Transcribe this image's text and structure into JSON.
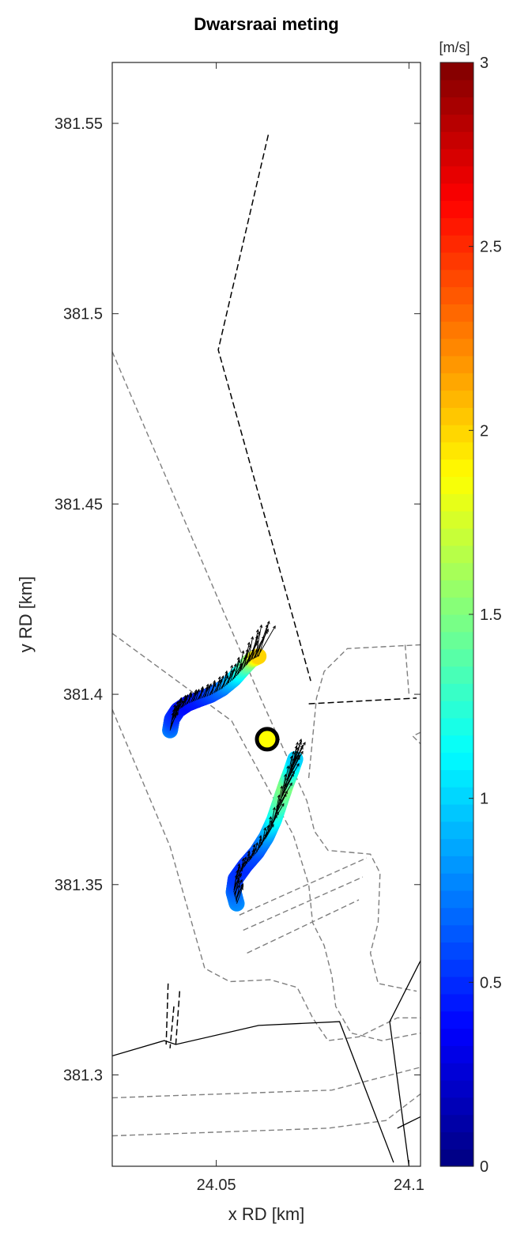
{
  "chart_data": {
    "type": "scatter",
    "title": "Dwarsraai meting",
    "xlabel": "x RD [km]",
    "ylabel": "y RD [km]",
    "xlim": [
      24.023,
      24.103
    ],
    "ylim": [
      381.276,
      381.566
    ],
    "xticks": [
      24.05,
      24.1
    ],
    "xtick_labels": [
      "24.05",
      "24.1"
    ],
    "yticks": [
      381.3,
      381.35,
      381.4,
      381.45,
      381.5,
      381.55
    ],
    "ytick_labels": [
      "381.3",
      "381.35",
      "381.4",
      "381.45",
      "381.5",
      "381.55"
    ],
    "grid": false,
    "colorbar": {
      "unit": "[m/s]",
      "range": [
        0,
        3
      ],
      "ticks": [
        0,
        0.5,
        1,
        1.5,
        2,
        2.5,
        3
      ],
      "tick_labels": [
        "0",
        "0.5",
        "1",
        "1.5",
        "2",
        "2.5",
        "3"
      ],
      "colormap": "jet"
    },
    "marker": {
      "x": 24.0632,
      "y": 381.3882,
      "fill": "#ffff00",
      "edge": "#000000"
    },
    "series": [
      {
        "points": [
          {
            "x": 24.038,
            "y": 381.3905,
            "v": 0.75
          },
          {
            "x": 24.0385,
            "y": 381.3935,
            "v": 0.55
          },
          {
            "x": 24.04,
            "y": 381.3958,
            "v": 0.45
          },
          {
            "x": 24.0425,
            "y": 381.3975,
            "v": 0.4
          },
          {
            "x": 24.0455,
            "y": 381.3987,
            "v": 0.45
          },
          {
            "x": 24.0485,
            "y": 381.3998,
            "v": 0.55
          },
          {
            "x": 24.0515,
            "y": 381.4015,
            "v": 0.7
          },
          {
            "x": 24.0545,
            "y": 381.404,
            "v": 0.95
          },
          {
            "x": 24.057,
            "y": 381.4068,
            "v": 1.25
          },
          {
            "x": 24.059,
            "y": 381.409,
            "v": 1.55
          },
          {
            "x": 24.061,
            "y": 381.41,
            "v": 2.0
          }
        ]
      },
      {
        "points": [
          {
            "x": 24.0553,
            "y": 381.345,
            "v": 0.8
          },
          {
            "x": 24.0545,
            "y": 381.348,
            "v": 0.7
          },
          {
            "x": 24.055,
            "y": 381.3515,
            "v": 0.55
          },
          {
            "x": 24.0575,
            "y": 381.355,
            "v": 0.5
          },
          {
            "x": 24.0605,
            "y": 381.3585,
            "v": 0.6
          },
          {
            "x": 24.063,
            "y": 381.3625,
            "v": 0.8
          },
          {
            "x": 24.065,
            "y": 381.367,
            "v": 1.1
          },
          {
            "x": 24.0665,
            "y": 381.3715,
            "v": 1.35
          },
          {
            "x": 24.068,
            "y": 381.376,
            "v": 1.5
          },
          {
            "x": 24.0695,
            "y": 381.38,
            "v": 1.2
          },
          {
            "x": 24.0705,
            "y": 381.383,
            "v": 1.0
          }
        ]
      }
    ],
    "dashed_black_lines": [
      [
        [
          24.0635,
          381.547
        ],
        [
          24.0505,
          381.4905
        ],
        [
          24.0745,
          381.4035
        ]
      ],
      [
        [
          24.074,
          381.3975
        ],
        [
          24.102,
          381.399
        ]
      ],
      [
        [
          24.0375,
          381.324
        ],
        [
          24.037,
          381.308
        ]
      ],
      [
        [
          24.039,
          381.318
        ],
        [
          24.038,
          381.307
        ]
      ],
      [
        [
          24.0405,
          381.322
        ],
        [
          24.0395,
          381.308
        ]
      ]
    ],
    "solid_black_lines": [
      [
        [
          24.023,
          381.305
        ],
        [
          24.0365,
          381.309
        ],
        [
          24.0395,
          381.308
        ],
        [
          24.061,
          381.313
        ],
        [
          24.082,
          381.314
        ],
        [
          24.096,
          381.277
        ]
      ],
      [
        [
          24.103,
          381.33
        ],
        [
          24.095,
          381.314
        ],
        [
          24.1,
          381.276
        ]
      ],
      [
        [
          24.097,
          381.286
        ],
        [
          24.103,
          381.289
        ]
      ]
    ],
    "dashed_gray_lines": [
      [
        [
          24.023,
          381.49
        ],
        [
          24.0615,
          381.399
        ],
        [
          24.0735,
          381.372
        ],
        [
          24.0755,
          381.364
        ],
        [
          24.079,
          381.359
        ],
        [
          24.09,
          381.358
        ],
        [
          24.0925,
          381.353
        ],
        [
          24.092,
          381.34
        ],
        [
          24.09,
          381.332
        ],
        [
          24.092,
          381.324
        ],
        [
          24.102,
          381.322
        ]
      ],
      [
        [
          24.023,
          381.416
        ],
        [
          24.054,
          381.393
        ],
        [
          24.07,
          381.363
        ],
        [
          24.074,
          381.35
        ],
        [
          24.075,
          381.34
        ],
        [
          24.078,
          381.334
        ],
        [
          24.08,
          381.326
        ],
        [
          24.081,
          381.318
        ],
        [
          24.085,
          381.311
        ],
        [
          24.093,
          381.309
        ],
        [
          24.103,
          381.311
        ]
      ],
      [
        [
          24.023,
          381.396
        ],
        [
          24.038,
          381.36
        ],
        [
          24.047,
          381.328
        ],
        [
          24.0535,
          381.3245
        ],
        [
          24.064,
          381.325
        ],
        [
          24.071,
          381.323
        ],
        [
          24.075,
          381.315
        ],
        [
          24.079,
          381.309
        ],
        [
          24.087,
          381.31
        ],
        [
          24.097,
          381.315
        ],
        [
          24.103,
          381.315
        ]
      ],
      [
        [
          24.023,
          381.294
        ],
        [
          24.08,
          381.296
        ],
        [
          24.103,
          381.302
        ]
      ],
      [
        [
          24.023,
          381.284
        ],
        [
          24.079,
          381.286
        ],
        [
          24.094,
          381.288
        ],
        [
          24.103,
          381.295
        ]
      ],
      [
        [
          24.056,
          381.342
        ],
        [
          24.089,
          381.357
        ]
      ],
      [
        [
          24.057,
          381.338
        ],
        [
          24.088,
          381.352
        ]
      ],
      [
        [
          24.058,
          381.332
        ],
        [
          24.087,
          381.346
        ]
      ],
      [
        [
          24.074,
          381.378
        ],
        [
          24.076,
          381.399
        ],
        [
          24.078,
          381.406
        ],
        [
          24.084,
          381.412
        ],
        [
          24.103,
          381.413
        ]
      ],
      [
        [
          24.099,
          381.413
        ],
        [
          24.1,
          381.4
        ]
      ],
      [
        [
          24.103,
          381.39
        ],
        [
          24.101,
          381.389
        ],
        [
          24.103,
          381.387
        ]
      ]
    ]
  }
}
